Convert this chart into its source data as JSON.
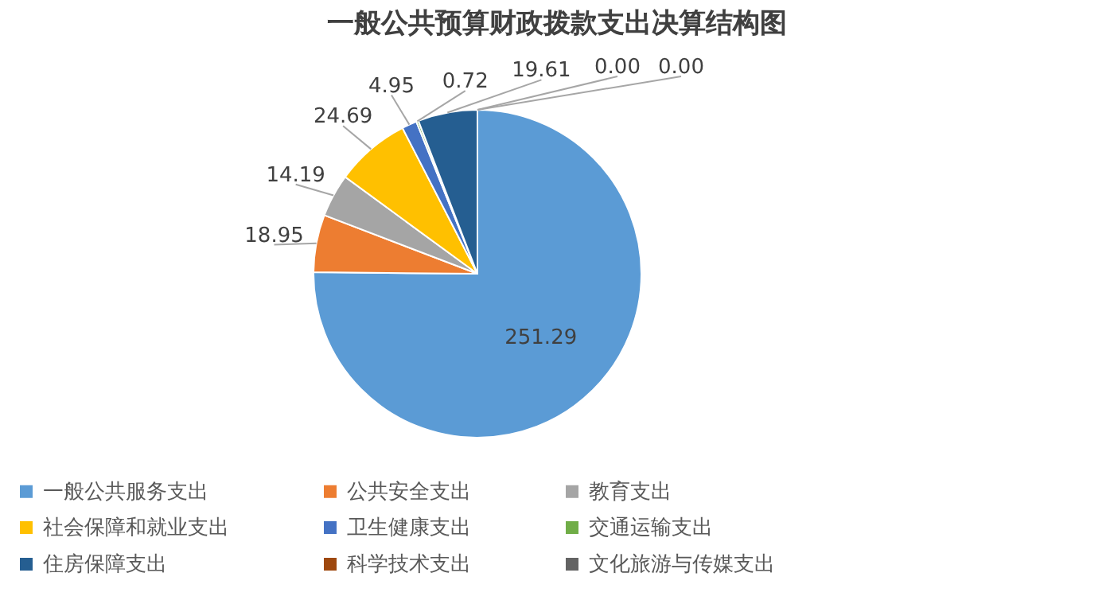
{
  "chart_data": {
    "type": "pie",
    "title": "一般公共预算财政拨款支出决算结构图",
    "categories": [
      "一般公共服务支出",
      "公共安全支出",
      "教育支出",
      "社会保障和就业支出",
      "卫生健康支出",
      "交通运输支出",
      "住房保障支出",
      "科学技术支出",
      "文化旅游与传媒支出"
    ],
    "values": [
      251.29,
      18.95,
      14.19,
      24.69,
      4.95,
      0.72,
      19.61,
      0.0,
      0.0
    ],
    "value_labels": [
      "251.29",
      "18.95",
      "14.19",
      "24.69",
      "4.95",
      "0.72",
      "19.61",
      "0.00",
      "0.00"
    ],
    "colors": [
      "#5b9bd5",
      "#ed7d31",
      "#a5a5a5",
      "#ffc000",
      "#4472c4",
      "#70ad47",
      "#255e91",
      "#9e480e",
      "#636363"
    ],
    "legend": "bottom"
  }
}
